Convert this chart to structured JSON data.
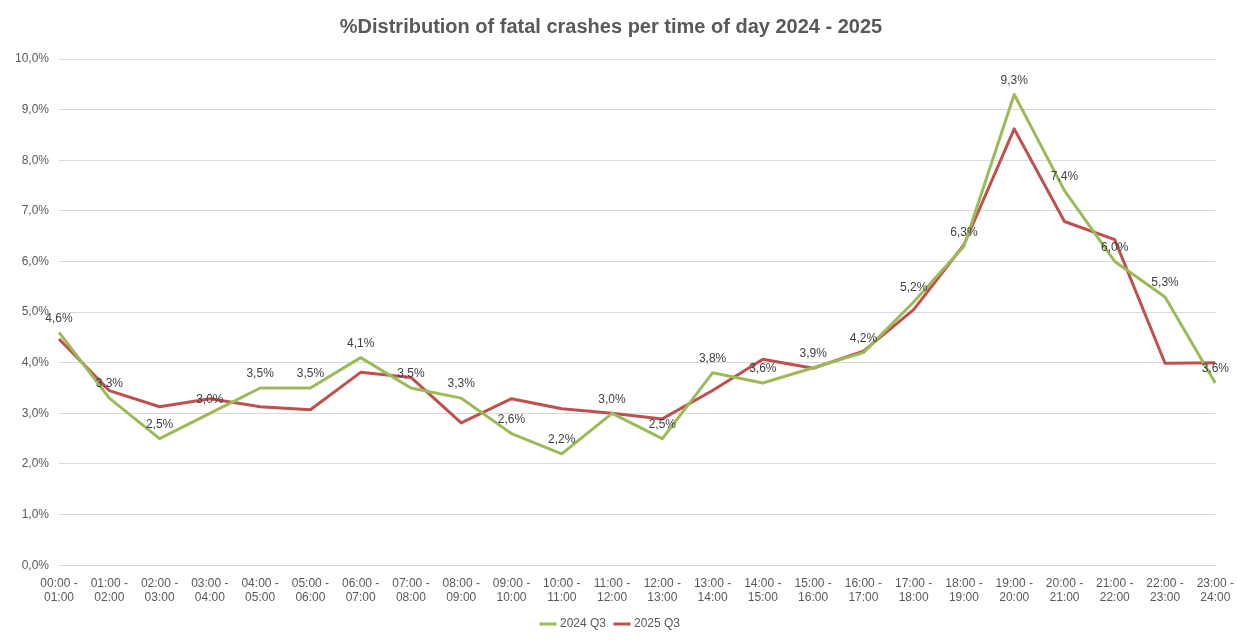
{
  "chart_data": {
    "type": "line",
    "title": "%Distribution of fatal crashes per time of day 2024 - 2025",
    "categories": [
      "00:00 - 01:00",
      "01:00 - 02:00",
      "02:00 - 03:00",
      "03:00 - 04:00",
      "04:00 - 05:00",
      "05:00 - 06:00",
      "06:00 - 07:00",
      "07:00 - 08:00",
      "08:00 - 09:00",
      "09:00 - 10:00",
      "10:00 - 11:00",
      "11:00 - 12:00",
      "12:00 - 13:00",
      "13:00 - 14:00",
      "14:00 - 15:00",
      "15:00 - 16:00",
      "16:00 - 17:00",
      "17:00 - 18:00",
      "18:00 - 19:00",
      "19:00 - 20:00",
      "20:00 - 21:00",
      "21:00 - 22:00",
      "22:00 - 23:00",
      "23:00 - 24:00"
    ],
    "series": [
      {
        "name": "2024 Q3",
        "color": "#9bbb59",
        "values": [
          4.6,
          3.3,
          2.5,
          3.0,
          3.5,
          3.5,
          4.1,
          3.5,
          3.3,
          2.6,
          2.2,
          3.0,
          2.5,
          3.8,
          3.6,
          3.9,
          4.2,
          5.2,
          6.3,
          9.3,
          7.4,
          6.0,
          5.3,
          3.6
        ],
        "value_labels": [
          "4,6%",
          "3,3%",
          "2,5%",
          "3,0%",
          "3,5%",
          "3,5%",
          "4,1%",
          "3,5%",
          "3,3%",
          "2,6%",
          "2,2%",
          "3,0%",
          "2,5%",
          "3,8%",
          "3,6%",
          "3,9%",
          "4,2%",
          "5,2%",
          "6,3%",
          "9,3%",
          "7,4%",
          "6,0%",
          "5,3%",
          "3,6%"
        ]
      },
      {
        "name": "2025 Q3",
        "color": "#c0504d",
        "values": [
          4.47,
          3.45,
          3.13,
          3.29,
          3.13,
          3.07,
          3.81,
          3.71,
          2.81,
          3.29,
          3.09,
          3.0,
          2.89,
          3.45,
          4.07,
          3.89,
          4.23,
          5.05,
          6.33,
          8.62,
          6.79,
          6.43,
          3.99,
          4.0
        ]
      }
    ],
    "ylim": [
      0,
      10
    ],
    "yticks": [
      {
        "value": 0,
        "label": "0,0%"
      },
      {
        "value": 1,
        "label": "1,0%"
      },
      {
        "value": 2,
        "label": "2,0%"
      },
      {
        "value": 3,
        "label": "3,0%"
      },
      {
        "value": 4,
        "label": "4,0%"
      },
      {
        "value": 5,
        "label": "5,0%"
      },
      {
        "value": 6,
        "label": "6,0%"
      },
      {
        "value": 7,
        "label": "7,0%"
      },
      {
        "value": 8,
        "label": "8,0%"
      },
      {
        "value": 9,
        "label": "9,0%"
      },
      {
        "value": 10,
        "label": "10,0%"
      }
    ],
    "grid": "y",
    "legend": "bottom",
    "marker": "none",
    "line_style": "solid"
  }
}
